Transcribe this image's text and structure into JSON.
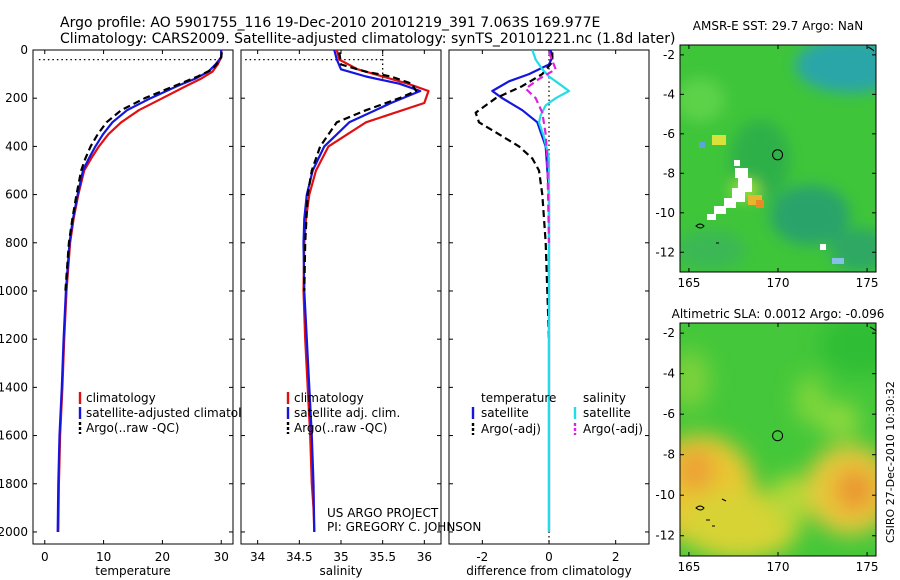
{
  "header": {
    "line1": "Argo profile: AO 5901755_116 19-Dec-2010 20101219_391 7.063S 169.977E",
    "line2": "Climatology: CARS2009. Satellite-adjusted climatology: synTS_20101221.nc (1.8d later)"
  },
  "credits": {
    "project": "US ARGO PROJECT",
    "pi": "PI: GREGORY C. JOHNSON",
    "stamp": "CSIRO 27-Dec-2010 10:30:32"
  },
  "colors": {
    "climatology": "#e01010",
    "satellite": "#1515e0",
    "argo": "#000000",
    "cyan": "#22dde8",
    "magenta": "#e020e0"
  },
  "chart_data": [
    {
      "type": "line",
      "id": "temperature",
      "xlabel": "temperature",
      "ylabel": "",
      "xlim": [
        -2,
        32
      ],
      "ylim": [
        2050,
        0
      ],
      "xticks": [
        0,
        10,
        20,
        30
      ],
      "yticks": [
        0,
        200,
        400,
        600,
        800,
        1000,
        1200,
        1400,
        1600,
        1800,
        2000
      ],
      "legend": [
        "climatology",
        "satellite-adjusted climatology",
        "Argo(..raw -QC)"
      ],
      "series": [
        {
          "name": "climatology",
          "color": "#e01010",
          "dash": "",
          "x": [
            30.0,
            30.0,
            29.4,
            28.5,
            26.5,
            24.0,
            20.0,
            16.0,
            13.0,
            10.8,
            9.2,
            7.9,
            6.7,
            5.7,
            4.9,
            4.3,
            3.7,
            3.3,
            3.0,
            2.6,
            2.4,
            2.3
          ],
          "y": [
            0,
            30,
            60,
            90,
            120,
            150,
            200,
            250,
            300,
            350,
            400,
            450,
            500,
            600,
            700,
            800,
            1000,
            1200,
            1400,
            1600,
            1800,
            2000
          ]
        },
        {
          "name": "satellite-adjusted climatology",
          "color": "#1515e0",
          "dash": "",
          "x": [
            30.0,
            30.0,
            29.0,
            27.8,
            25.5,
            22.5,
            18.0,
            14.0,
            11.5,
            9.9,
            8.6,
            7.5,
            6.5,
            5.6,
            4.8,
            4.2,
            3.6,
            3.2,
            2.9,
            2.5,
            2.3,
            2.2
          ],
          "y": [
            0,
            30,
            60,
            90,
            120,
            150,
            200,
            250,
            300,
            350,
            400,
            450,
            500,
            600,
            700,
            800,
            1000,
            1200,
            1400,
            1600,
            1800,
            2000
          ]
        },
        {
          "name": "Argo(..raw -QC)",
          "color": "#000000",
          "dash": "7,4",
          "x": [
            30.1,
            30.0,
            29.5,
            28.5,
            26.0,
            22.0,
            17.0,
            13.0,
            10.5,
            9.0,
            7.8,
            6.9,
            6.2,
            5.4,
            4.7,
            4.1,
            3.5
          ],
          "y": [
            10,
            30,
            50,
            80,
            110,
            150,
            200,
            250,
            300,
            350,
            400,
            450,
            500,
            600,
            700,
            800,
            1000
          ]
        }
      ]
    },
    {
      "type": "line",
      "id": "salinity",
      "xlabel": "salinity",
      "ylabel": "",
      "xlim": [
        33.8,
        36.2
      ],
      "ylim": [
        2050,
        0
      ],
      "xticks": [
        34,
        34.5,
        35,
        35.5,
        36
      ],
      "yticks": [
        0,
        200,
        400,
        600,
        800,
        1000,
        1200,
        1400,
        1600,
        1800,
        2000
      ],
      "legend": [
        "climatology",
        "satellite adj. clim.",
        "Argo(..raw -QC)"
      ],
      "series": [
        {
          "name": "climatology",
          "color": "#e01010",
          "dash": "",
          "x": [
            34.95,
            34.98,
            35.2,
            35.5,
            35.8,
            36.05,
            36.0,
            35.3,
            34.85,
            34.7,
            34.62,
            34.58,
            34.56,
            34.55,
            34.57,
            34.6,
            34.63,
            34.65,
            34.67,
            34.68
          ],
          "y": [
            0,
            40,
            80,
            110,
            140,
            170,
            220,
            300,
            400,
            500,
            600,
            700,
            800,
            1000,
            1200,
            1400,
            1600,
            1800,
            1900,
            2000
          ]
        },
        {
          "name": "satellite adj. clim.",
          "color": "#1515e0",
          "dash": "",
          "x": [
            34.92,
            34.95,
            35.0,
            35.3,
            35.7,
            35.95,
            35.6,
            35.1,
            34.8,
            34.66,
            34.59,
            34.56,
            34.55,
            34.56,
            34.59,
            34.62,
            34.65,
            34.67,
            34.68
          ],
          "y": [
            0,
            40,
            80,
            110,
            140,
            170,
            220,
            300,
            400,
            500,
            600,
            700,
            800,
            1000,
            1200,
            1400,
            1600,
            1800,
            2000
          ]
        },
        {
          "name": "Argo(..raw -QC)",
          "color": "#000000",
          "dash": "7,4",
          "x": [
            34.98,
            35.0,
            35.3,
            35.6,
            35.85,
            35.9,
            35.7,
            35.3,
            34.95,
            34.75,
            34.65,
            34.6,
            34.57,
            34.56
          ],
          "y": [
            10,
            60,
            90,
            110,
            140,
            170,
            200,
            250,
            300,
            400,
            500,
            600,
            800,
            1000
          ]
        }
      ]
    },
    {
      "type": "line",
      "id": "difference",
      "xlabel": "difference from climatology",
      "ylabel": "",
      "xlim": [
        -3.0,
        3.0
      ],
      "ylim": [
        2050,
        0
      ],
      "xticks": [
        -2,
        0,
        2
      ],
      "yticks": [
        0,
        200,
        400,
        600,
        800,
        1000,
        1200,
        1400,
        1600,
        1800,
        2000
      ],
      "legend_temperature": {
        "title": "temperature",
        "items": [
          "satellite",
          "Argo(-adj)"
        ]
      },
      "legend_salinity": {
        "title": "salinity",
        "items": [
          "satellite",
          "Argo(-adj)"
        ]
      },
      "series": [
        {
          "name": "temperature satellite",
          "color": "#1515e0",
          "dash": "",
          "x": [
            0.05,
            0.1,
            0.0,
            -0.6,
            -1.2,
            -1.7,
            -1.4,
            -0.8,
            -0.35,
            -0.1,
            0.0,
            0.0,
            0.0,
            0.0
          ],
          "y": [
            0,
            30,
            60,
            100,
            130,
            170,
            200,
            250,
            300,
            400,
            600,
            1000,
            1500,
            2000
          ]
        },
        {
          "name": "temperature Argo(-adj)",
          "color": "#000000",
          "dash": "7,4",
          "x": [
            0.1,
            0.1,
            -0.2,
            -0.8,
            -1.6,
            -2.2,
            -2.1,
            -1.5,
            -0.9,
            -0.5,
            -0.3,
            -0.2,
            -0.1,
            -0.05,
            0.0
          ],
          "y": [
            10,
            50,
            100,
            150,
            200,
            260,
            300,
            350,
            400,
            450,
            500,
            600,
            800,
            1000,
            1200
          ]
        },
        {
          "name": "salinity satellite",
          "color": "#22dde8",
          "dash": "",
          "x": [
            -0.5,
            -0.4,
            -0.2,
            0.0,
            0.3,
            0.6,
            0.2,
            -0.1,
            -0.25,
            -0.3,
            -0.15,
            0.0,
            0.0,
            0.0
          ],
          "y": [
            0,
            40,
            80,
            110,
            140,
            170,
            200,
            230,
            270,
            300,
            360,
            450,
            800,
            2000
          ]
        },
        {
          "name": "salinity Argo(-adj)",
          "color": "#e020e0",
          "dash": "7,4",
          "x": [
            0.0,
            0.2,
            -0.3,
            -0.7,
            -0.4,
            -0.2,
            -0.1,
            -0.05,
            0.0
          ],
          "y": [
            10,
            80,
            120,
            160,
            200,
            260,
            350,
            450,
            800
          ]
        }
      ]
    },
    {
      "type": "heatmap",
      "id": "sst",
      "title": "AMSR-E SST: 29.7 Argo: NaN",
      "xlim": [
        164.5,
        175.5
      ],
      "ylim": [
        -13,
        -1.5
      ],
      "xticks": [
        165,
        170,
        175
      ],
      "yticks": [
        -2,
        -4,
        -6,
        -8,
        -10,
        -12
      ],
      "marker": {
        "lon": 169.977,
        "lat": -7.063
      }
    },
    {
      "type": "heatmap",
      "id": "sla",
      "title": "Altimetric SLA: 0.0012 Argo: -0.096",
      "xlim": [
        164.5,
        175.5
      ],
      "ylim": [
        -13,
        -1.5
      ],
      "xticks": [
        165,
        170,
        175
      ],
      "yticks": [
        -2,
        -4,
        -6,
        -8,
        -10,
        -12
      ],
      "marker": {
        "lon": 169.977,
        "lat": -7.063
      }
    }
  ]
}
